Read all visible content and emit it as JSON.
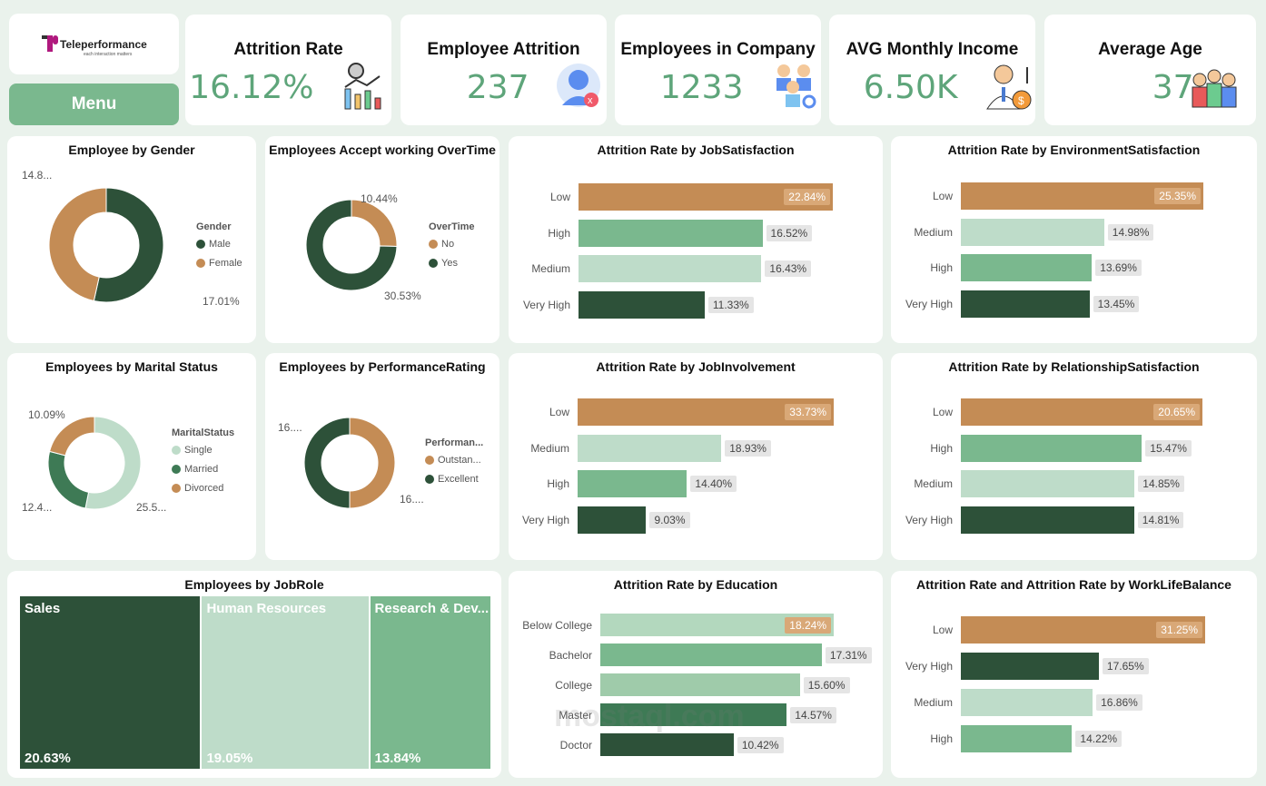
{
  "logo": {
    "name": "Teleperformance",
    "tagline": "each interaction matters"
  },
  "menu_label": "Menu",
  "kpis": [
    {
      "title": "Attrition Rate",
      "value": "16.12%",
      "icon": "attrition-chart-icon"
    },
    {
      "title": "Employee Attrition",
      "value": "237",
      "icon": "employee-leave-icon"
    },
    {
      "title": "Employees in Company",
      "value": "1233",
      "icon": "employees-team-icon"
    },
    {
      "title": "AVG Monthly Income",
      "value": "6.50K",
      "icon": "income-icon"
    },
    {
      "title": "Average Age",
      "value": "37",
      "icon": "age-group-icon"
    }
  ],
  "colors": {
    "orange": "#C48C55",
    "dark": "#2D5139",
    "mid": "#7AB88E",
    "light": "#BEDCC9",
    "married": "#3E7A55",
    "kpi": "#5EA57A"
  },
  "donuts": [
    {
      "id": "gender",
      "title": "Employee by Gender",
      "legend_title": "Gender",
      "slices": [
        {
          "name": "Male",
          "value": 17.01,
          "label": "17.01%",
          "color": "#2D5139"
        },
        {
          "name": "Female",
          "value": 14.8,
          "label": "14.8...",
          "color": "#C48C55"
        }
      ]
    },
    {
      "id": "overtime",
      "title": "Employees Accept working OverTime",
      "legend_title": "OverTime",
      "slices": [
        {
          "name": "No",
          "value": 10.44,
          "label": "10.44%",
          "color": "#C48C55"
        },
        {
          "name": "Yes",
          "value": 30.53,
          "label": "30.53%",
          "color": "#2D5139"
        }
      ]
    },
    {
      "id": "marital",
      "title": "Employees by Marital Status",
      "legend_title": "MaritalStatus",
      "slices": [
        {
          "name": "Single",
          "value": 25.5,
          "label": "25.5...",
          "color": "#BEDCC9"
        },
        {
          "name": "Married",
          "value": 12.4,
          "label": "12.4...",
          "color": "#3E7A55"
        },
        {
          "name": "Divorced",
          "value": 10.09,
          "label": "10.09%",
          "color": "#C48C55"
        }
      ]
    },
    {
      "id": "performance",
      "title": "Employees by PerformanceRating",
      "legend_title": "Performan...",
      "slices": [
        {
          "name": "Outstan...",
          "value": 16,
          "label": "16....",
          "color": "#C48C55"
        },
        {
          "name": "Excellent",
          "value": 16,
          "label": "16....",
          "color": "#2D5139"
        }
      ]
    }
  ],
  "bars": [
    {
      "id": "jobsat",
      "title": "Attrition Rate by JobSatisfaction",
      "rows": [
        {
          "label": "Low",
          "value": 22.84,
          "text": "22.84%",
          "color": "#C48C55"
        },
        {
          "label": "High",
          "value": 16.52,
          "text": "16.52%",
          "color": "#7AB88E"
        },
        {
          "label": "Medium",
          "value": 16.43,
          "text": "16.43%",
          "color": "#BEDCC9"
        },
        {
          "label": "Very High",
          "value": 11.33,
          "text": "11.33%",
          "color": "#2D5139"
        }
      ]
    },
    {
      "id": "env",
      "title": "Attrition Rate by EnvironmentSatisfaction",
      "rows": [
        {
          "label": "Low",
          "value": 25.35,
          "text": "25.35%",
          "color": "#C48C55"
        },
        {
          "label": "Medium",
          "value": 14.98,
          "text": "14.98%",
          "color": "#BEDCC9"
        },
        {
          "label": "High",
          "value": 13.69,
          "text": "13.69%",
          "color": "#7AB88E"
        },
        {
          "label": "Very High",
          "value": 13.45,
          "text": "13.45%",
          "color": "#2D5139"
        }
      ]
    },
    {
      "id": "involve",
      "title": "Attrition Rate by JobInvolvement",
      "rows": [
        {
          "label": "Low",
          "value": 33.73,
          "text": "33.73%",
          "color": "#C48C55"
        },
        {
          "label": "Medium",
          "value": 18.93,
          "text": "18.93%",
          "color": "#BEDCC9"
        },
        {
          "label": "High",
          "value": 14.4,
          "text": "14.40%",
          "color": "#7AB88E"
        },
        {
          "label": "Very High",
          "value": 9.03,
          "text": "9.03%",
          "color": "#2D5139"
        }
      ]
    },
    {
      "id": "relation",
      "title": "Attrition Rate by RelationshipSatisfaction",
      "rows": [
        {
          "label": "Low",
          "value": 20.65,
          "text": "20.65%",
          "color": "#C48C55"
        },
        {
          "label": "High",
          "value": 15.47,
          "text": "15.47%",
          "color": "#7AB88E"
        },
        {
          "label": "Medium",
          "value": 14.85,
          "text": "14.85%",
          "color": "#BEDCC9"
        },
        {
          "label": "Very High",
          "value": 14.81,
          "text": "14.81%",
          "color": "#2D5139"
        }
      ]
    },
    {
      "id": "education",
      "title": "Attrition Rate by Education",
      "rows": [
        {
          "label": "Below College",
          "value": 18.24,
          "text": "18.24%",
          "color": "#B3D8BE"
        },
        {
          "label": "Bachelor",
          "value": 17.31,
          "text": "17.31%",
          "color": "#7AB88E"
        },
        {
          "label": "College",
          "value": 15.6,
          "text": "15.60%",
          "color": "#9FCBAA"
        },
        {
          "label": "Master",
          "value": 14.57,
          "text": "14.57%",
          "color": "#3E7A55"
        },
        {
          "label": "Doctor",
          "value": 10.42,
          "text": "10.42%",
          "color": "#2D5139"
        }
      ]
    },
    {
      "id": "wlb",
      "title": "Attrition Rate and Attrition Rate by WorkLifeBalance",
      "rows": [
        {
          "label": "Low",
          "value": 31.25,
          "text": "31.25%",
          "color": "#C48C55"
        },
        {
          "label": "Very High",
          "value": 17.65,
          "text": "17.65%",
          "color": "#2D5139"
        },
        {
          "label": "Medium",
          "value": 16.86,
          "text": "16.86%",
          "color": "#BEDCC9"
        },
        {
          "label": "High",
          "value": 14.22,
          "text": "14.22%",
          "color": "#7AB88E"
        }
      ]
    }
  ],
  "treemap": {
    "title": "Employees by JobRole",
    "items": [
      {
        "name": "Sales",
        "value": 20.63,
        "text": "20.63%",
        "color": "#2D5139"
      },
      {
        "name": "Human Resources",
        "value": 19.05,
        "text": "19.05%",
        "color": "#BEDCC9"
      },
      {
        "name": "Research & Dev...",
        "value": 13.84,
        "text": "13.84%",
        "color": "#7AB88E"
      }
    ]
  },
  "watermark": "mostaql.com"
}
